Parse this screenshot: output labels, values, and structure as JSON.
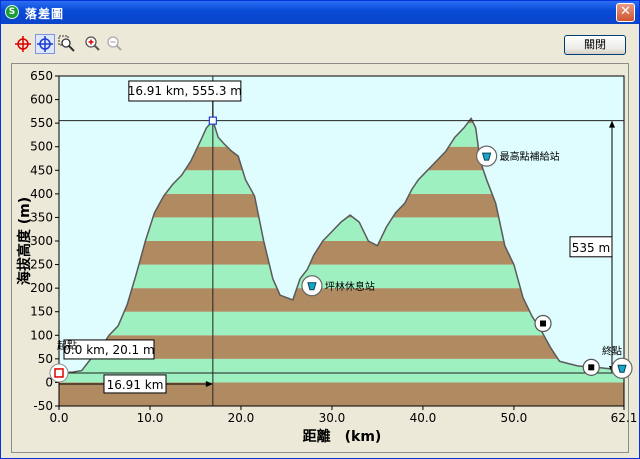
{
  "window": {
    "title": "落差圖",
    "close_glyph": "✕"
  },
  "toolbar": {
    "close_label": "關閉"
  },
  "chart_data": {
    "type": "area",
    "xlabel": "距離　(km)",
    "ylabel": "海拔高度 (m)",
    "xlim": [
      0,
      62.1
    ],
    "ylim": [
      -50,
      650
    ],
    "x_ticks": [
      "0.0",
      "10.0",
      "20.0",
      "30.0",
      "40.0",
      "50.0",
      "62.1"
    ],
    "y_ticks": [
      "650",
      "600",
      "550",
      "500",
      "450",
      "400",
      "350",
      "300",
      "250",
      "200",
      "150",
      "100",
      "50",
      "0",
      "-50"
    ],
    "x": [
      0,
      1.5,
      2.5,
      3.5,
      4.5,
      5.5,
      6.5,
      7.5,
      8.5,
      9.5,
      10.5,
      11.5,
      12.5,
      13.5,
      14.5,
      15.5,
      16.2,
      16.91,
      17.5,
      18.2,
      19.0,
      19.7,
      20.5,
      21.5,
      22.5,
      23.5,
      24.3,
      25.0,
      25.7,
      26.5,
      27.3,
      28.0,
      29.0,
      30.0,
      31.0,
      32.0,
      33.0,
      34.0,
      35.0,
      36.0,
      37.0,
      38.0,
      38.8,
      39.5,
      40.5,
      41.5,
      42.5,
      43.5,
      44.5,
      45.3,
      45.8,
      46.3,
      47.0,
      48.0,
      49.0,
      50.0,
      51.0,
      52.0,
      53.0,
      54.0,
      55.0,
      56.0,
      57.0,
      58.0,
      59.0,
      60.0,
      61.0,
      62.1
    ],
    "values": [
      20.1,
      22,
      25,
      50,
      70,
      100,
      120,
      165,
      230,
      300,
      360,
      395,
      420,
      440,
      470,
      510,
      540,
      555.3,
      520,
      505,
      490,
      480,
      430,
      395,
      300,
      220,
      185,
      180,
      175,
      220,
      240,
      270,
      300,
      320,
      340,
      355,
      340,
      300,
      290,
      330,
      360,
      380,
      410,
      430,
      450,
      470,
      490,
      520,
      540,
      560,
      540,
      470,
      430,
      380,
      290,
      250,
      180,
      140,
      110,
      75,
      45,
      40,
      35,
      33,
      32,
      30,
      28,
      26
    ],
    "cursor": {
      "x": 16.91,
      "y": 555.3,
      "label": "16.91 km, 555.3 m"
    },
    "start_label": "0.0 km, 20.1 m",
    "distance_label": "16.91 km",
    "elevation_gain_label": "535 m",
    "markers": [
      {
        "name": "起點",
        "x": 0,
        "y": 20.1,
        "icon": "start-flag-icon"
      },
      {
        "name": "坪林休息站",
        "x": 27.8,
        "y": 205,
        "icon": "rest-stop-icon"
      },
      {
        "name": "最高點補給站",
        "x": 47.0,
        "y": 480,
        "icon": "supply-station-icon"
      },
      {
        "name": "",
        "x": 53.2,
        "y": 125,
        "icon": "checkpoint-icon"
      },
      {
        "name": "",
        "x": 58.5,
        "y": 32,
        "icon": "checkpoint-icon"
      },
      {
        "name": "終點",
        "x": 62.1,
        "y": 30,
        "icon": "finish-icon"
      }
    ],
    "colors": {
      "plot_bg": "#dffcfe",
      "band_brown": "#b08a60",
      "band_green": "#9ef0c0",
      "line": "#5a5a5a"
    }
  }
}
